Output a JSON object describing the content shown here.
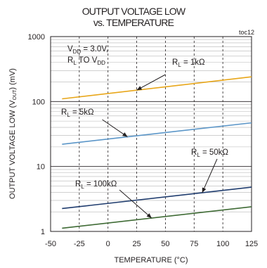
{
  "chart_data": {
    "type": "line",
    "title_line1": "OUTPUT VOLTAGE LOW",
    "title_line2": "vs. TEMPERATURE",
    "tag": "toc12",
    "xlabel": "TEMPERATURE (°C)",
    "ylabel_main": "OUTPUT VOLTAGE LOW (V",
    "ylabel_sub": "OUT",
    "ylabel_end": ") (mV)",
    "x_ticks": [
      "-50",
      "-25",
      "0",
      "25",
      "50",
      "75",
      "100",
      "125"
    ],
    "y_ticks": [
      "1",
      "10",
      "100",
      "1000"
    ],
    "xlim": [
      -50,
      125
    ],
    "ylim": [
      1,
      1000
    ],
    "y_scale": "log",
    "grid": true,
    "condition": {
      "line1_pre": "V",
      "line1_sub": "DD",
      "line1_post": " = 3.0V,",
      "line2_pre": "R",
      "line2_sub": "L",
      "line2_mid": " TO V",
      "line2_sub2": "DD"
    },
    "series": [
      {
        "name": "1kΩ",
        "label_pre": "R",
        "label_sub": "L",
        "label_post": " = 1kΩ",
        "color": "#e8a619",
        "x": [
          -40,
          125
        ],
        "y": [
          110,
          240
        ]
      },
      {
        "name": "5kΩ",
        "label_pre": "R",
        "label_sub": "L",
        "label_post": " = 5kΩ",
        "color": "#5b96c8",
        "x": [
          -40,
          125
        ],
        "y": [
          22,
          47
        ]
      },
      {
        "name": "50kΩ",
        "label_pre": "R",
        "label_sub": "L",
        "label_post": " = 50kΩ",
        "color": "#1f3c6e",
        "x": [
          -40,
          125
        ],
        "y": [
          2.25,
          4.8
        ]
      },
      {
        "name": "100kΩ",
        "label_pre": "R",
        "label_sub": "L",
        "label_post": " = 100kΩ",
        "color": "#3f6b35",
        "x": [
          -40,
          125
        ],
        "y": [
          1.12,
          2.4
        ]
      }
    ]
  }
}
